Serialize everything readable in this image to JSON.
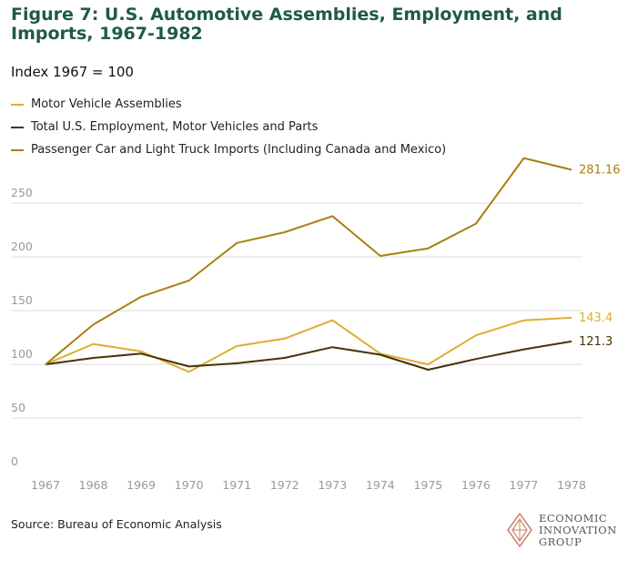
{
  "header": {
    "title": "Figure 7: U.S. Automotive Assemblies, Employment, and Imports, 1967-1982",
    "subtitle": "Index 1967 = 100"
  },
  "footer": {
    "source": "Source: Bureau of Economic Analysis",
    "logo_lines": [
      "ECONOMIC",
      "INNOVATION",
      "GROUP"
    ]
  },
  "colors": {
    "assemblies": "#e0ad2f",
    "employment": "#4a3208",
    "imports": "#a8810f",
    "grid": "#dddddd",
    "axis_text": "#999999"
  },
  "chart_data": {
    "type": "line",
    "x": [
      "1967",
      "1968",
      "1969",
      "1970",
      "1971",
      "1972",
      "1973",
      "1974",
      "1975",
      "1976",
      "1977",
      "1978"
    ],
    "ylim": [
      0,
      290
    ],
    "yticks": [
      0,
      50,
      100,
      150,
      200,
      250
    ],
    "grid": true,
    "legend_position": "top-left",
    "series": [
      {
        "name": "Motor Vehicle Assemblies",
        "color_key": "assemblies",
        "values": [
          100,
          119,
          112,
          93,
          117,
          124,
          141,
          110,
          100,
          127,
          141,
          143.4
        ],
        "end_label": "143.4"
      },
      {
        "name": "Total U.S. Employment, Motor Vehicles and Parts",
        "color_key": "employment",
        "values": [
          100,
          106,
          110,
          98,
          101,
          106,
          116,
          109,
          95,
          105,
          114,
          121.3
        ],
        "end_label": "121.3"
      },
      {
        "name": "Passenger Car and Light Truck Imports (Including Canada and Mexico)",
        "color_key": "imports",
        "values": [
          100,
          137,
          163,
          178,
          213,
          223,
          238,
          201,
          208,
          231,
          292,
          281.16
        ],
        "end_label": "281.16"
      }
    ]
  }
}
